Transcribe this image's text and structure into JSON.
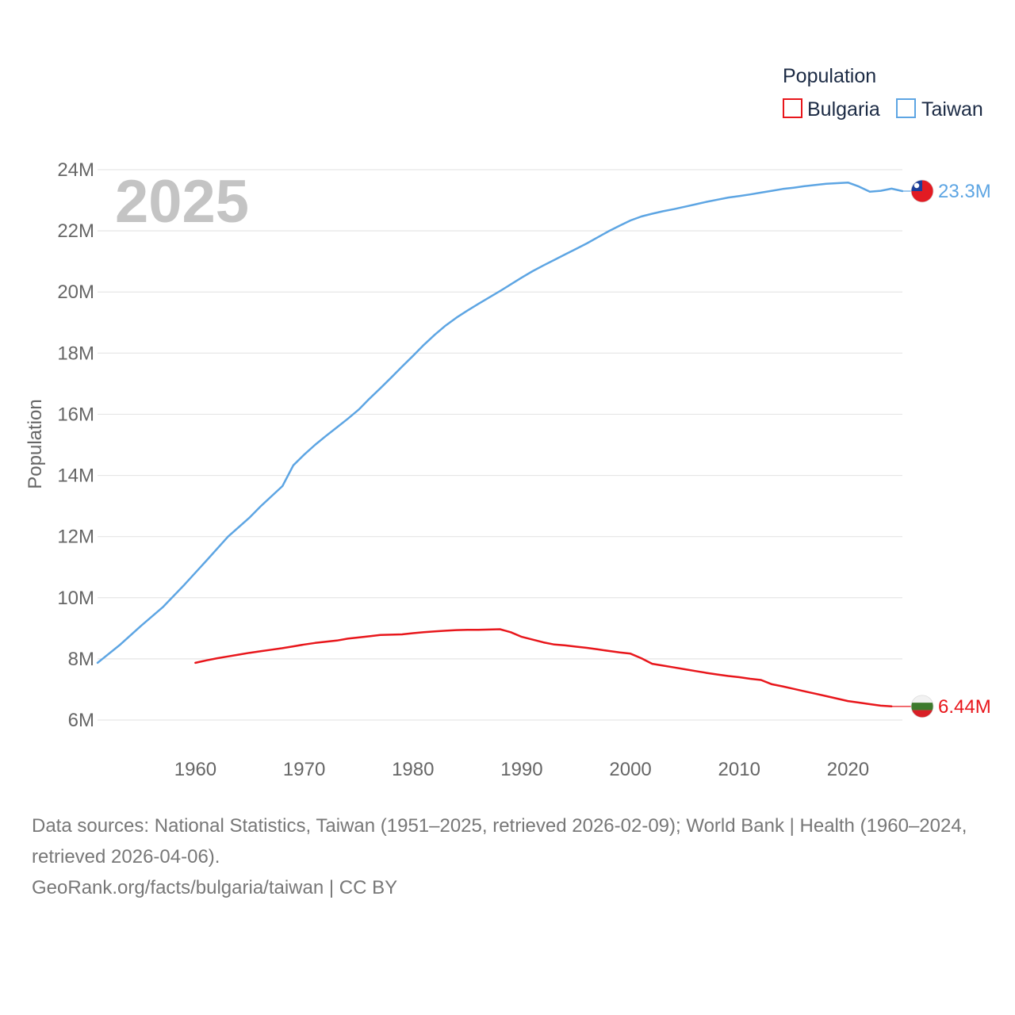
{
  "chart_data": {
    "type": "line",
    "title": "",
    "xlabel": "",
    "ylabel": "Population",
    "xlim": [
      1951,
      2025
    ],
    "ylim": [
      6000000,
      24000000
    ],
    "x_ticks": [
      1960,
      1970,
      1980,
      1990,
      2000,
      2010,
      2020
    ],
    "y_ticks": [
      {
        "value": 6000000,
        "label": "6M"
      },
      {
        "value": 8000000,
        "label": "8M"
      },
      {
        "value": 10000000,
        "label": "10M"
      },
      {
        "value": 12000000,
        "label": "12M"
      },
      {
        "value": 14000000,
        "label": "14M"
      },
      {
        "value": 16000000,
        "label": "16M"
      },
      {
        "value": 18000000,
        "label": "18M"
      },
      {
        "value": 20000000,
        "label": "20M"
      },
      {
        "value": 22000000,
        "label": "22M"
      },
      {
        "value": 24000000,
        "label": "24M"
      }
    ],
    "current_year_label": "2025",
    "legend_title": "Population",
    "series": [
      {
        "name": "Bulgaria",
        "color": "#e8161b",
        "end_label": "6.44M",
        "flag": "bulgaria-flag-icon",
        "x": [
          1960,
          1961,
          1962,
          1963,
          1964,
          1965,
          1966,
          1967,
          1968,
          1969,
          1970,
          1971,
          1972,
          1973,
          1974,
          1975,
          1976,
          1977,
          1978,
          1979,
          1980,
          1981,
          1982,
          1983,
          1984,
          1985,
          1986,
          1987,
          1988,
          1989,
          1990,
          1991,
          1992,
          1993,
          1994,
          1995,
          1996,
          1997,
          1998,
          1999,
          2000,
          2001,
          2002,
          2003,
          2004,
          2005,
          2006,
          2007,
          2008,
          2009,
          2010,
          2011,
          2012,
          2013,
          2014,
          2015,
          2016,
          2017,
          2018,
          2019,
          2020,
          2021,
          2022,
          2023,
          2024
        ],
        "values": [
          7870000,
          7950000,
          8020000,
          8080000,
          8140000,
          8200000,
          8250000,
          8300000,
          8350000,
          8410000,
          8470000,
          8520000,
          8560000,
          8600000,
          8660000,
          8700000,
          8740000,
          8780000,
          8790000,
          8800000,
          8840000,
          8870000,
          8900000,
          8920000,
          8940000,
          8950000,
          8950000,
          8960000,
          8970000,
          8870000,
          8720000,
          8630000,
          8540000,
          8470000,
          8440000,
          8400000,
          8360000,
          8310000,
          8260000,
          8210000,
          8170000,
          8020000,
          7840000,
          7780000,
          7720000,
          7660000,
          7600000,
          7540000,
          7490000,
          7440000,
          7400000,
          7350000,
          7310000,
          7170000,
          7100000,
          7020000,
          6940000,
          6860000,
          6780000,
          6700000,
          6620000,
          6570000,
          6520000,
          6470000,
          6445000
        ]
      },
      {
        "name": "Taiwan",
        "color": "#5da5e3",
        "end_label": "23.3M",
        "flag": "taiwan-flag-icon",
        "x": [
          1951,
          1953,
          1955,
          1957,
          1959,
          1961,
          1963,
          1965,
          1966,
          1968,
          1969,
          1970,
          1971,
          1972,
          1973,
          1974,
          1975,
          1976,
          1977,
          1978,
          1979,
          1980,
          1981,
          1982,
          1983,
          1984,
          1985,
          1986,
          1987,
          1988,
          1989,
          1990,
          1991,
          1992,
          1993,
          1994,
          1995,
          1996,
          1997,
          1998,
          1999,
          2000,
          2001,
          2002,
          2003,
          2004,
          2005,
          2006,
          2007,
          2008,
          2009,
          2010,
          2011,
          2012,
          2013,
          2014,
          2015,
          2016,
          2017,
          2018,
          2019,
          2020,
          2021,
          2022,
          2023,
          2024,
          2025
        ],
        "values": [
          7870000,
          8440000,
          9080000,
          9690000,
          10430000,
          11210000,
          12000000,
          12630000,
          12990000,
          13650000,
          14330000,
          14680000,
          15000000,
          15290000,
          15570000,
          15850000,
          16150000,
          16510000,
          16850000,
          17200000,
          17560000,
          17910000,
          18270000,
          18600000,
          18900000,
          19160000,
          19390000,
          19610000,
          19820000,
          20030000,
          20250000,
          20470000,
          20680000,
          20870000,
          21050000,
          21230000,
          21410000,
          21590000,
          21790000,
          21990000,
          22170000,
          22340000,
          22470000,
          22560000,
          22640000,
          22710000,
          22790000,
          22870000,
          22950000,
          23020000,
          23090000,
          23140000,
          23190000,
          23250000,
          23310000,
          23370000,
          23410000,
          23460000,
          23500000,
          23540000,
          23560000,
          23580000,
          23450000,
          23280000,
          23310000,
          23380000,
          23300000
        ]
      }
    ]
  },
  "footer": {
    "sources": "Data sources: National Statistics, Taiwan (1951–2025, retrieved 2026-02-09); World Bank | Health (1960–2024, retrieved 2026-04-06).",
    "attribution": "GeoRank.org/facts/bulgaria/taiwan | CC BY"
  }
}
